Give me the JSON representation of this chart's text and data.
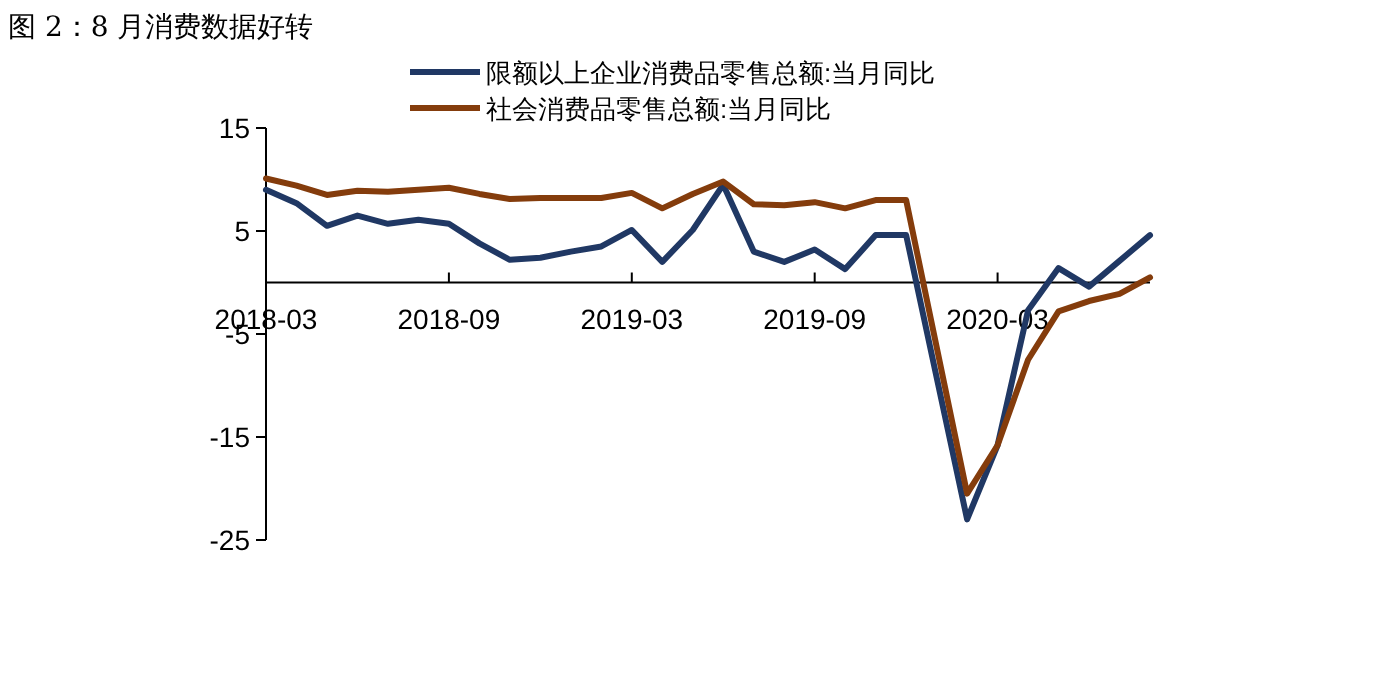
{
  "chart_data": {
    "type": "line",
    "title": "图 2：8 月消费数据好转",
    "x": [
      "2018-03",
      "2018-04",
      "2018-05",
      "2018-06",
      "2018-07",
      "2018-08",
      "2018-09",
      "2018-10",
      "2018-11",
      "2018-12",
      "2019-01",
      "2019-02",
      "2019-03",
      "2019-04",
      "2019-05",
      "2019-06",
      "2019-07",
      "2019-08",
      "2019-09",
      "2019-10",
      "2019-11",
      "2019-12",
      "2020-02",
      "2020-03",
      "2020-04",
      "2020-05",
      "2020-06",
      "2020-07",
      "2020-08"
    ],
    "series": [
      {
        "name": "限额以上企业消费品零售总额:当月同比",
        "color": "#203864",
        "values": [
          9.0,
          7.7,
          5.5,
          6.5,
          5.7,
          6.1,
          5.7,
          3.8,
          2.2,
          2.4,
          3.0,
          3.5,
          5.1,
          2.0,
          5.1,
          9.5,
          3.0,
          2.0,
          3.2,
          1.3,
          4.6,
          4.6,
          -23.0,
          -15.8,
          -2.7,
          1.4,
          -0.4,
          2.1,
          4.6
        ]
      },
      {
        "name": "社会消费品零售总额:当月同比",
        "color": "#843c0c",
        "values": [
          10.1,
          9.4,
          8.5,
          8.9,
          8.8,
          9.0,
          9.2,
          8.6,
          8.1,
          8.2,
          8.2,
          8.2,
          8.7,
          7.2,
          8.6,
          9.8,
          7.6,
          7.5,
          7.8,
          7.2,
          8.0,
          8.0,
          -20.5,
          -15.8,
          -7.5,
          -2.8,
          -1.8,
          -1.1,
          0.5
        ]
      }
    ],
    "xlim": [
      "2018-03",
      "2020-08"
    ],
    "xticks": [
      "2018-03",
      "2018-09",
      "2019-03",
      "2019-09",
      "2020-03"
    ],
    "ylim": [
      -25,
      15
    ],
    "yticks": [
      -25,
      -15,
      -5,
      5,
      15
    ],
    "legend": "top",
    "grid": false,
    "marker": "none",
    "line_style": "solid"
  }
}
